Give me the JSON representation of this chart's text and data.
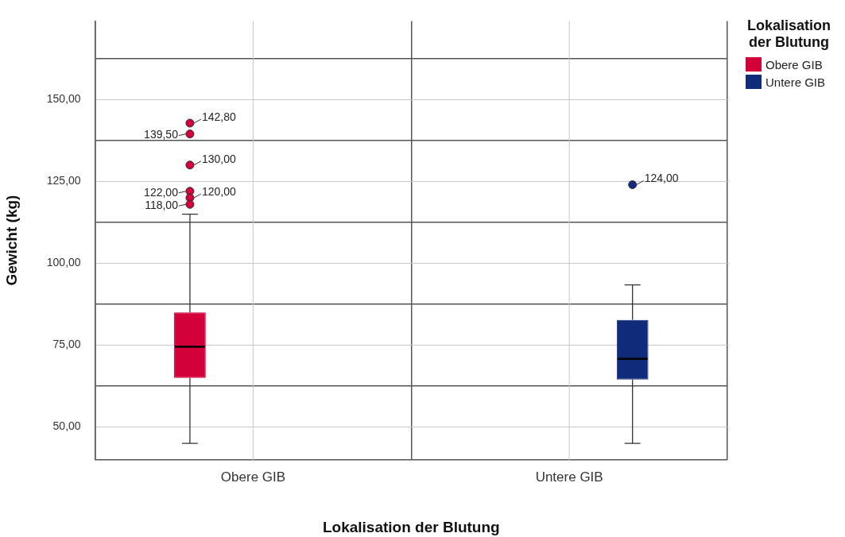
{
  "chart_data": {
    "type": "box",
    "xlabel": "Lokalisation der Blutung",
    "ylabel": "Gewicht (kg)",
    "legend_title": "Lokalisation der Blutung",
    "legend": "top right",
    "grid": true,
    "categories": [
      "Obere GIB",
      "Untere GIB"
    ],
    "series": [
      {
        "name": "Obere GIB",
        "color": "#d4003a",
        "boxes": [
          {
            "low": 45,
            "q1": 65,
            "median": 74.5,
            "q3": 85,
            "high": 115,
            "outliers": [
              142.8,
              139.5,
              130,
              122,
              120,
              118
            ]
          },
          null
        ]
      },
      {
        "name": "Untere GIB",
        "color": "#0f2b7a",
        "boxes": [
          null,
          {
            "low": 45,
            "q1": 64.5,
            "median": 70.8,
            "q3": 82.7,
            "high": 93.4,
            "outliers": [
              124
            ]
          }
        ]
      }
    ],
    "ylim": [
      40,
      174
    ],
    "yticks": [
      {
        "value": 50,
        "label": "50,00"
      },
      {
        "value": 62.5,
        "label": null
      },
      {
        "value": 75,
        "label": "75,00"
      },
      {
        "value": 87.5,
        "label": null
      },
      {
        "value": 100,
        "label": "100,00"
      },
      {
        "value": 112.5,
        "label": null
      },
      {
        "value": 125,
        "label": "125,00"
      },
      {
        "value": 137.5,
        "label": null
      },
      {
        "value": 150,
        "label": "150,00"
      },
      {
        "value": 162.5,
        "label": null
      }
    ],
    "annotations": [
      "142,80",
      "139,50",
      "130,00",
      "122,00",
      "120,00",
      "118,00",
      "124,00"
    ]
  }
}
